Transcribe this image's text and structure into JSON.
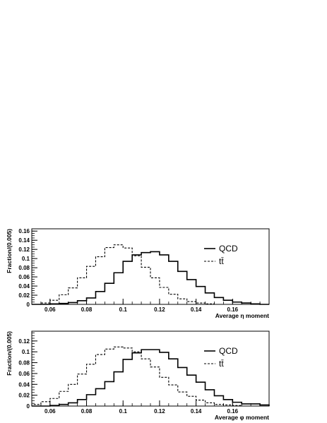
{
  "chart_data": [
    {
      "type": "histogram",
      "xlabel": "Average η moment",
      "ylabel": "Fraction/(0.005)",
      "xlim": [
        0.05,
        0.18
      ],
      "ylim": [
        0,
        0.165
      ],
      "bin_width": 0.005,
      "x_ticks": [
        0.06,
        0.08,
        0.1,
        0.12,
        0.14,
        0.16
      ],
      "x_tick_labels": [
        "0.06",
        "0.08",
        "0.1",
        "0.12",
        "0.14",
        "0.16"
      ],
      "y_ticks": [
        0,
        0.02,
        0.04,
        0.06,
        0.08,
        0.1,
        0.12,
        0.14,
        0.16
      ],
      "y_tick_labels": [
        "0",
        "0.02",
        "0.04",
        "0.06",
        "0.08",
        "0.1",
        "0.12",
        "0.14",
        "0.16"
      ],
      "legend_position": "top-right",
      "series": [
        {
          "name": "QCD",
          "style": "solid",
          "values": [
            0.0,
            0.0,
            0.001,
            0.002,
            0.004,
            0.008,
            0.014,
            0.028,
            0.046,
            0.069,
            0.094,
            0.108,
            0.113,
            0.115,
            0.108,
            0.094,
            0.072,
            0.054,
            0.039,
            0.025,
            0.015,
            0.009,
            0.005,
            0.003,
            0.001,
            0.0
          ]
        },
        {
          "name": "tt̄",
          "style": "dashed",
          "values": [
            0.0,
            0.003,
            0.009,
            0.021,
            0.036,
            0.058,
            0.083,
            0.104,
            0.124,
            0.13,
            0.123,
            0.106,
            0.081,
            0.058,
            0.037,
            0.022,
            0.012,
            0.006,
            0.003,
            0.001,
            0.0,
            0.0,
            0.0,
            0.0,
            0.0,
            0.0
          ]
        }
      ]
    },
    {
      "type": "histogram",
      "xlabel": "Average φ moment",
      "ylabel": "Fraction/(0.005)",
      "xlim": [
        0.05,
        0.18
      ],
      "ylim": [
        0,
        0.138
      ],
      "bin_width": 0.005,
      "x_ticks": [
        0.06,
        0.08,
        0.1,
        0.12,
        0.14,
        0.16
      ],
      "x_tick_labels": [
        "0.06",
        "0.08",
        "0.1",
        "0.12",
        "0.14",
        "0.16"
      ],
      "y_ticks": [
        0,
        0.02,
        0.04,
        0.06,
        0.08,
        0.1,
        0.12
      ],
      "y_tick_labels": [
        "0",
        "0.02",
        "0.04",
        "0.06",
        "0.08",
        "0.1",
        "0.12"
      ],
      "legend_position": "top-right",
      "series": [
        {
          "name": "QCD",
          "style": "solid",
          "values": [
            0.0,
            0.0,
            0.001,
            0.003,
            0.006,
            0.012,
            0.021,
            0.032,
            0.045,
            0.063,
            0.086,
            0.098,
            0.104,
            0.104,
            0.099,
            0.087,
            0.071,
            0.057,
            0.044,
            0.03,
            0.019,
            0.012,
            0.007,
            0.004,
            0.004,
            0.002
          ]
        },
        {
          "name": "tt̄",
          "style": "dashed",
          "values": [
            0.003,
            0.008,
            0.014,
            0.027,
            0.04,
            0.059,
            0.077,
            0.095,
            0.105,
            0.109,
            0.107,
            0.1,
            0.087,
            0.072,
            0.053,
            0.039,
            0.026,
            0.018,
            0.011,
            0.006,
            0.003,
            0.002,
            0.001,
            0.0,
            0.0,
            0.0
          ]
        }
      ]
    }
  ]
}
